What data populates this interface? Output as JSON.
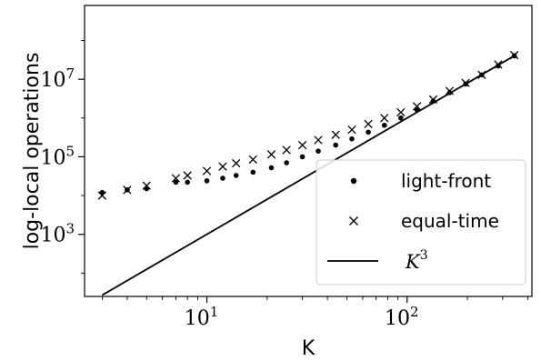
{
  "chart_data": {
    "type": "scatter",
    "xlabel": "K",
    "ylabel": "log-local operations",
    "xscale": "log",
    "yscale": "log",
    "xlim": [
      2.45,
      420
    ],
    "ylim": [
      25,
      800000000
    ],
    "x_ticks": [
      {
        "base": "10",
        "exp": "1",
        "value": 10
      },
      {
        "base": "10",
        "exp": "2",
        "value": 100
      }
    ],
    "y_ticks": [
      {
        "base": "10",
        "exp": "3",
        "value": 1000
      },
      {
        "base": "10",
        "exp": "5",
        "value": 100000
      },
      {
        "base": "10",
        "exp": "7",
        "value": 10000000
      }
    ],
    "legend_position": "lower-right",
    "grid": false,
    "series": [
      {
        "name": "light-front",
        "marker": "dot",
        "color": "#000000",
        "x": [
          3,
          4,
          5,
          7,
          8,
          10,
          12,
          14,
          17,
          21,
          25,
          30,
          36,
          44,
          53,
          64,
          77,
          93,
          112,
          135,
          163,
          196,
          236,
          285,
          343
        ],
        "y": [
          12000,
          14000,
          15000,
          22000,
          22000,
          24000,
          28000,
          33000,
          40000,
          52000,
          70000,
          100000,
          140000,
          200000,
          290000,
          430000,
          650000,
          1000000,
          1600000,
          2700000,
          4500000,
          7500000,
          13000000,
          22000000,
          40000000
        ]
      },
      {
        "name": "equal-time",
        "marker": "x",
        "color": "#000000",
        "x": [
          3,
          4,
          5,
          7,
          8,
          10,
          12,
          14,
          17,
          21,
          25,
          30,
          36,
          44,
          53,
          64,
          77,
          93,
          112,
          135,
          163,
          196,
          236,
          285,
          343
        ],
        "y": [
          10000,
          14000,
          18000,
          28000,
          33000,
          43000,
          56000,
          68000,
          85000,
          115000,
          150000,
          200000,
          270000,
          370000,
          500000,
          700000,
          1000000,
          1400000,
          2000000,
          3000000,
          5000000,
          8000000,
          13000000,
          24000000,
          42000000
        ]
      },
      {
        "name": "K",
        "name_exp": "3",
        "marker": "line",
        "color": "#000000",
        "x": [
          3,
          343
        ],
        "y": [
          27,
          40353607
        ]
      }
    ]
  }
}
